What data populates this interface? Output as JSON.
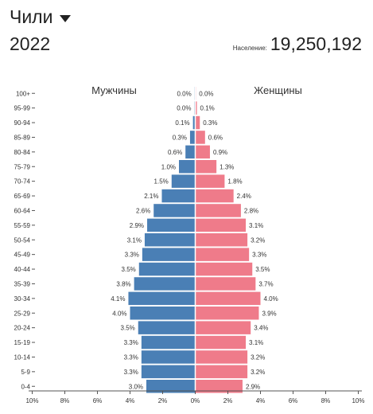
{
  "header": {
    "country": "Чили",
    "year": "2022",
    "population_label": "Население:",
    "population_value": "19,250,192"
  },
  "colors": {
    "male": "#4a7fb5",
    "female": "#ef7b8a",
    "axis": "#555555",
    "text": "#222222"
  },
  "chart_data": {
    "type": "bar",
    "orientation": "horizontal",
    "title": "",
    "xlabel": "",
    "ylabel": "",
    "categories": [
      "100+",
      "95-99",
      "90-94",
      "85-89",
      "80-84",
      "75-79",
      "70-74",
      "65-69",
      "60-64",
      "55-59",
      "50-54",
      "45-49",
      "40-44",
      "35-39",
      "30-34",
      "25-29",
      "20-24",
      "15-19",
      "10-14",
      "5-9",
      "0-4"
    ],
    "series": [
      {
        "name": "Мужчины",
        "side": "left",
        "values": [
          0.0,
          0.0,
          0.1,
          0.3,
          0.6,
          1.0,
          1.5,
          2.1,
          2.6,
          2.9,
          3.1,
          3.3,
          3.5,
          3.8,
          4.1,
          4.0,
          3.5,
          3.3,
          3.3,
          3.3,
          3.0
        ],
        "bar_values": [
          0.02,
          0.05,
          0.14,
          0.32,
          0.6,
          1.0,
          1.45,
          2.05,
          2.55,
          2.95,
          3.1,
          3.25,
          3.45,
          3.75,
          4.1,
          4.0,
          3.5,
          3.3,
          3.3,
          3.3,
          3.0
        ],
        "labels": [
          "0.0%",
          "0.0%",
          "0.1%",
          "0.3%",
          "0.6%",
          "1.0%",
          "1.5%",
          "2.1%",
          "2.6%",
          "2.9%",
          "3.1%",
          "3.3%",
          "3.5%",
          "3.8%",
          "4.1%",
          "4.0%",
          "3.5%",
          "3.3%",
          "3.3%",
          "3.3%",
          "3.0%"
        ]
      },
      {
        "name": "Женщины",
        "side": "right",
        "values": [
          0.0,
          0.1,
          0.3,
          0.6,
          0.9,
          1.3,
          1.8,
          2.4,
          2.8,
          3.1,
          3.2,
          3.3,
          3.5,
          3.7,
          4.0,
          3.9,
          3.4,
          3.1,
          3.2,
          3.2,
          2.9
        ],
        "bar_values": [
          0.03,
          0.1,
          0.28,
          0.6,
          0.9,
          1.3,
          1.8,
          2.35,
          2.8,
          3.1,
          3.2,
          3.3,
          3.5,
          3.7,
          4.0,
          3.9,
          3.4,
          3.1,
          3.2,
          3.2,
          2.9
        ],
        "labels": [
          "0.0%",
          "0.1%",
          "0.3%",
          "0.6%",
          "0.9%",
          "1.3%",
          "1.8%",
          "2.4%",
          "2.8%",
          "3.1%",
          "3.2%",
          "3.3%",
          "3.5%",
          "3.7%",
          "4.0%",
          "3.9%",
          "3.4%",
          "3.1%",
          "3.2%",
          "3.2%",
          "2.9%"
        ]
      }
    ],
    "xlim": [
      -10,
      10
    ],
    "xticks": [
      -10,
      -8,
      -6,
      -4,
      -2,
      0,
      2,
      4,
      6,
      8,
      10
    ],
    "xtick_labels": [
      "10%",
      "8%",
      "6%",
      "4%",
      "2%",
      "0%",
      "2%",
      "4%",
      "6%",
      "8%",
      "10%"
    ],
    "grid": false
  }
}
